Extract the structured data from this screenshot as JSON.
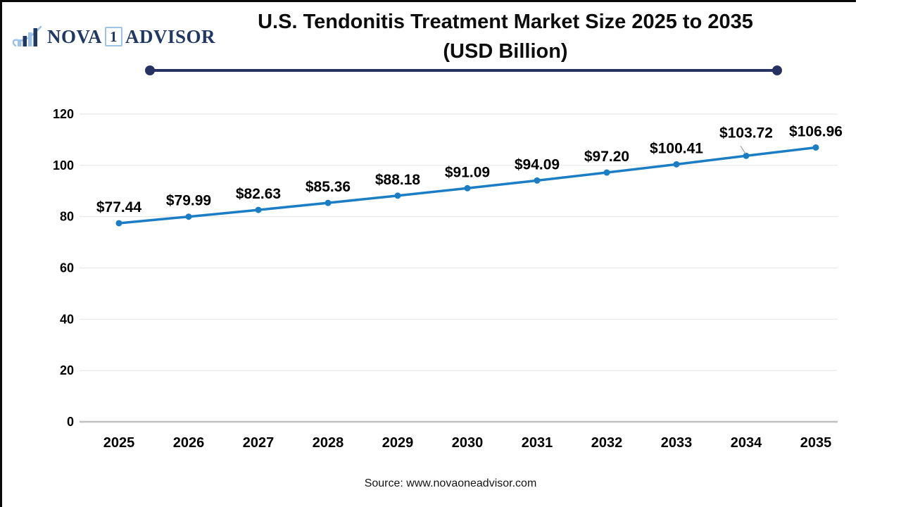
{
  "logo": {
    "part1": "NOVA",
    "part2": "1",
    "part3": "ADVISOR"
  },
  "title": {
    "line1": "U.S. Tendonitis Treatment Market Size 2025 to 2035",
    "line2": "(USD Billion)"
  },
  "source": "Source: www.novaoneadvisor.com",
  "colors": {
    "navy": "#263262",
    "logo_navy": "#1F3864",
    "logo_light_blue": "#9DC3E6",
    "line": "#1B7EC4",
    "grid_line": "#E7E7E7",
    "axis_line": "#BFBFBF",
    "leader_line": "#A6A6A6",
    "text": "#000000"
  },
  "chart_data": {
    "type": "line",
    "title": "U.S. Tendonitis Treatment Market Size 2025 to 2035 (USD Billion)",
    "xlabel": "",
    "ylabel": "",
    "categories": [
      "2025",
      "2026",
      "2027",
      "2028",
      "2029",
      "2030",
      "2031",
      "2032",
      "2033",
      "2034",
      "2035"
    ],
    "series": [
      {
        "name": "U.S. Tendonitis Treatment Market Size (USD Billion)",
        "values": [
          77.44,
          79.99,
          82.63,
          85.36,
          88.18,
          91.09,
          94.09,
          97.2,
          100.41,
          103.72,
          106.96
        ]
      }
    ],
    "point_labels": [
      "$77.44",
      "$79.99",
      "$82.63",
      "$85.36",
      "$88.18",
      "$91.09",
      "$94.09",
      "$97.20",
      "$100.41",
      "$103.72",
      "$106.96"
    ],
    "callout_index": 9,
    "ylim": [
      0,
      120
    ],
    "yticks": [
      0,
      20,
      40,
      60,
      80,
      100,
      120
    ],
    "grid": "horizontal",
    "legend": "none"
  }
}
